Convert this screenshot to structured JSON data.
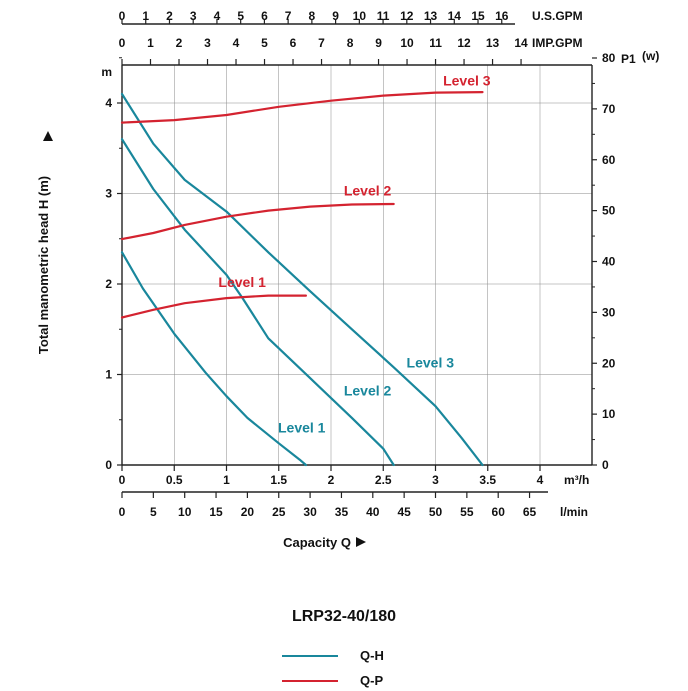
{
  "chart_data": {
    "type": "line",
    "model": "LRP32-40/180",
    "axes": {
      "flow_m3h": {
        "label": "m³/h",
        "range": [
          0,
          4.5
        ],
        "ticks": [
          "0",
          "0.5",
          "1",
          "1.5",
          "2",
          "2.5",
          "3",
          "3.5",
          "4"
        ],
        "tick_values": [
          0,
          0.5,
          1,
          1.5,
          2,
          2.5,
          3,
          3.5,
          4
        ]
      },
      "flow_lmin": {
        "label": "l/min",
        "ticks": [
          "0",
          "5",
          "10",
          "15",
          "20",
          "25",
          "30",
          "35",
          "40",
          "45",
          "50",
          "55",
          "60",
          "65"
        ],
        "tick_values": [
          0,
          5,
          10,
          15,
          20,
          25,
          30,
          35,
          40,
          45,
          50,
          55,
          60,
          65
        ]
      },
      "flow_usgpm": {
        "label": "U.S.GPM",
        "ticks": [
          "0",
          "1",
          "2",
          "3",
          "4",
          "5",
          "6",
          "7",
          "8",
          "9",
          "10",
          "11",
          "12",
          "13",
          "14",
          "15",
          "16"
        ],
        "tick_values": [
          0,
          1,
          2,
          3,
          4,
          5,
          6,
          7,
          8,
          9,
          10,
          11,
          12,
          13,
          14,
          15,
          16
        ]
      },
      "flow_impgpm": {
        "label": "IMP.GPM",
        "ticks": [
          "0",
          "1",
          "2",
          "3",
          "4",
          "5",
          "6",
          "7",
          "8",
          "9",
          "10",
          "11",
          "12",
          "13",
          "14"
        ],
        "tick_values": [
          0,
          1,
          2,
          3,
          4,
          5,
          6,
          7,
          8,
          9,
          10,
          11,
          12,
          13,
          14
        ]
      },
      "head": {
        "unit": "m",
        "range": [
          0,
          4.6
        ],
        "ticks": [
          "0",
          "1",
          "2",
          "3",
          "4"
        ],
        "tick_values": [
          0,
          1,
          2,
          3,
          4
        ]
      },
      "power": {
        "label": "P1",
        "unit": "(w)",
        "range": [
          0,
          80
        ],
        "ticks": [
          "0",
          "10",
          "20",
          "30",
          "40",
          "50",
          "60",
          "70",
          "80"
        ],
        "tick_values": [
          0,
          10,
          20,
          30,
          40,
          50,
          60,
          70,
          80
        ]
      },
      "xlabel": "Capacity Q",
      "ylabel": "Total manometric head H (m)"
    },
    "series": [
      {
        "name": "Level 1",
        "kind": "Q-H",
        "color": "#19879c",
        "x": [
          0,
          0.2,
          0.5,
          0.8,
          1.0,
          1.2,
          1.5,
          1.7,
          1.76
        ],
        "y": [
          2.35,
          1.95,
          1.45,
          1.02,
          0.76,
          0.52,
          0.24,
          0.06,
          0
        ]
      },
      {
        "name": "Level 2",
        "kind": "Q-H",
        "color": "#19879c",
        "x": [
          0,
          0.3,
          0.6,
          1.0,
          1.15,
          1.4,
          1.8,
          2.2,
          2.5,
          2.6
        ],
        "y": [
          3.6,
          3.05,
          2.6,
          2.1,
          1.85,
          1.4,
          0.96,
          0.52,
          0.18,
          0
        ]
      },
      {
        "name": "Level 3",
        "kind": "Q-H",
        "color": "#19879c",
        "x": [
          0,
          0.3,
          0.6,
          1.0,
          1.4,
          1.8,
          2.2,
          2.6,
          3.0,
          3.25,
          3.45
        ],
        "y": [
          4.1,
          3.55,
          3.15,
          2.8,
          2.35,
          1.92,
          1.5,
          1.08,
          0.65,
          0.3,
          0
        ]
      },
      {
        "name": "Level 1",
        "kind": "Q-P",
        "color": "#d42330",
        "x": [
          0,
          0.3,
          0.6,
          1.0,
          1.4,
          1.76
        ],
        "y": [
          29,
          30.5,
          31.8,
          32.8,
          33.3,
          33.3
        ]
      },
      {
        "name": "Level 2",
        "kind": "Q-P",
        "color": "#d42330",
        "x": [
          0,
          0.3,
          0.6,
          1.0,
          1.4,
          1.8,
          2.2,
          2.6
        ],
        "y": [
          44.4,
          45.6,
          47.2,
          48.8,
          50.0,
          50.8,
          51.2,
          51.3
        ]
      },
      {
        "name": "Level 3",
        "kind": "Q-P",
        "color": "#d42330",
        "x": [
          0,
          0.5,
          1.0,
          1.5,
          2.0,
          2.5,
          3.0,
          3.45
        ],
        "y": [
          67.3,
          67.8,
          68.8,
          70.4,
          71.6,
          72.6,
          73.2,
          73.3
        ]
      }
    ],
    "level_labels": [
      {
        "text": "Level 3",
        "kind": "Q-P",
        "x": 3.3,
        "y": 74.6
      },
      {
        "text": "Level 2",
        "kind": "Q-P",
        "x": 2.35,
        "y": 53.0
      },
      {
        "text": "Level 1",
        "kind": "Q-P",
        "x": 1.15,
        "y": 35.0
      },
      {
        "text": "Level 3",
        "kind": "Q-H",
        "x": 2.95,
        "y": 1.08
      },
      {
        "text": "Level 2",
        "kind": "Q-H",
        "x": 2.35,
        "y": 0.77
      },
      {
        "text": "Level 1",
        "kind": "Q-H",
        "x": 1.72,
        "y": 0.36
      }
    ],
    "legend": {
      "title": "LRP32-40/180",
      "placement": "bottom-center",
      "items": [
        {
          "label": "Q-H",
          "color": "#19879c"
        },
        {
          "label": "Q-P",
          "color": "#d42330"
        }
      ]
    },
    "grid": true
  }
}
